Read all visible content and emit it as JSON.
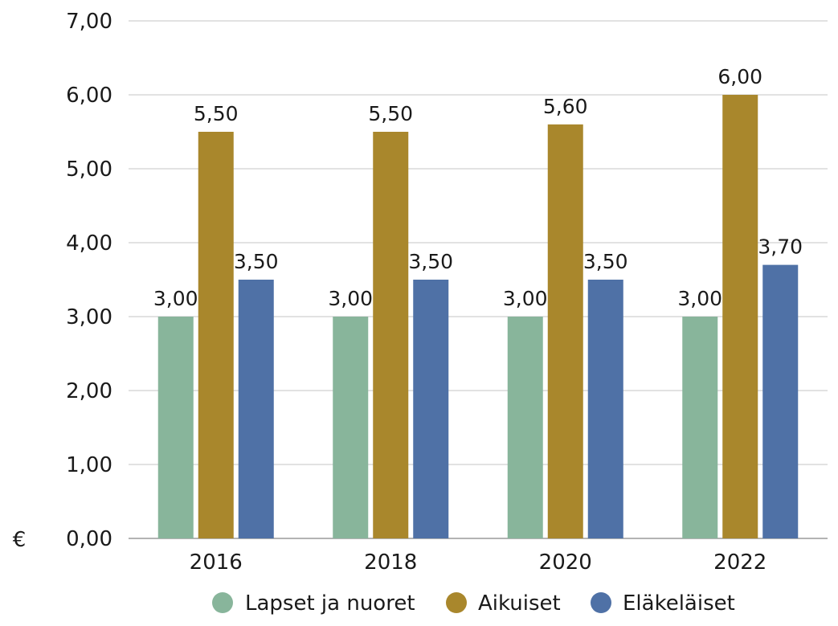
{
  "chart_data": {
    "type": "bar",
    "unit_label": "€",
    "categories": [
      "2016",
      "2018",
      "2020",
      "2022"
    ],
    "series": [
      {
        "name": "Lapset ja nuoret",
        "color": "#88b59b",
        "values": [
          3.0,
          3.0,
          3.0,
          3.0
        ],
        "labels": [
          "3,00",
          "3,00",
          "3,00",
          "3,00"
        ]
      },
      {
        "name": "Aikuiset",
        "color": "#a9872c",
        "values": [
          5.5,
          5.5,
          5.6,
          6.0
        ],
        "labels": [
          "5,50",
          "5,50",
          "5,60",
          "6,00"
        ]
      },
      {
        "name": "Eläkeläiset",
        "color": "#4f71a6",
        "values": [
          3.5,
          3.5,
          3.5,
          3.7
        ],
        "labels": [
          "3,50",
          "3,50",
          "3,50",
          "3,70"
        ]
      }
    ],
    "ylim": [
      0,
      7
    ],
    "yticks": [
      0,
      1,
      2,
      3,
      4,
      5,
      6,
      7
    ],
    "ytick_labels": [
      "0,00",
      "1,00",
      "2,00",
      "3,00",
      "4,00",
      "5,00",
      "6,00",
      "7,00"
    ],
    "grid": true,
    "legend_position": "bottom"
  }
}
